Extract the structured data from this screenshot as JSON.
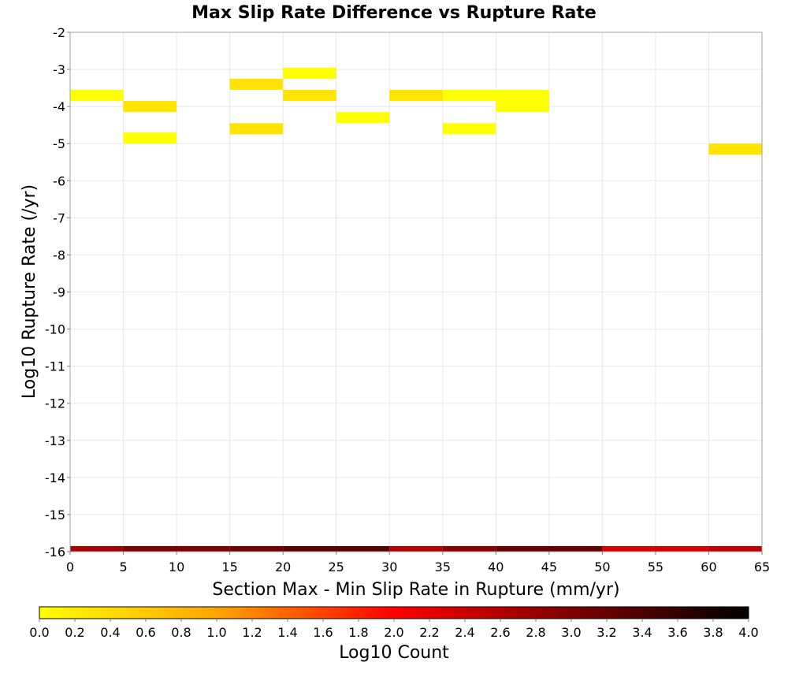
{
  "chart_data": {
    "type": "heatmap",
    "title": "Max Slip Rate Difference vs Rupture Rate",
    "xlabel": "Section Max - Min Slip Rate in Rupture (mm/yr)",
    "ylabel": "Log10 Rupture Rate (/yr)",
    "xlim": [
      0,
      65
    ],
    "ylim": [
      -16,
      -2
    ],
    "xticks": [
      "0",
      "5",
      "10",
      "15",
      "20",
      "25",
      "30",
      "35",
      "40",
      "45",
      "50",
      "55",
      "60",
      "65"
    ],
    "yticks": [
      "-2",
      "-3",
      "-4",
      "-5",
      "-6",
      "-7",
      "-8",
      "-9",
      "-10",
      "-11",
      "-12",
      "-13",
      "-14",
      "-15",
      "-16"
    ],
    "grid": true,
    "colorbar": {
      "label": "Log10 Count",
      "range": [
        0,
        4
      ],
      "position": "bottom",
      "ticks": [
        "0.0",
        "0.2",
        "0.4",
        "0.6",
        "0.8",
        "1.0",
        "1.2",
        "1.4",
        "1.6",
        "1.8",
        "2.0",
        "2.2",
        "2.4",
        "2.6",
        "2.8",
        "3.0",
        "3.2",
        "3.4",
        "3.6",
        "3.8",
        "4.0"
      ],
      "colors": [
        "#ffff00",
        "#ffa500",
        "#ff0000",
        "#800000",
        "#000000"
      ]
    },
    "cells": [
      {
        "x0": 0,
        "x1": 5,
        "y0": -3.85,
        "y1": -3.55,
        "value": 0.0
      },
      {
        "x0": 5,
        "x1": 10,
        "y0": -4.15,
        "y1": -3.85,
        "value": 0.3
      },
      {
        "x0": 5,
        "x1": 10,
        "y0": -5.0,
        "y1": -4.7,
        "value": 0.0
      },
      {
        "x0": 15,
        "x1": 20,
        "y0": -3.55,
        "y1": -3.25,
        "value": 0.3
      },
      {
        "x0": 15,
        "x1": 20,
        "y0": -4.75,
        "y1": -4.45,
        "value": 0.3
      },
      {
        "x0": 20,
        "x1": 25,
        "y0": -3.25,
        "y1": -2.95,
        "value": 0.0
      },
      {
        "x0": 20,
        "x1": 25,
        "y0": -3.85,
        "y1": -3.55,
        "value": 0.3
      },
      {
        "x0": 25,
        "x1": 30,
        "y0": -4.45,
        "y1": -4.15,
        "value": 0.0
      },
      {
        "x0": 30,
        "x1": 35,
        "y0": -3.85,
        "y1": -3.55,
        "value": 0.3
      },
      {
        "x0": 35,
        "x1": 40,
        "y0": -3.85,
        "y1": -3.55,
        "value": 0.0
      },
      {
        "x0": 35,
        "x1": 40,
        "y0": -4.75,
        "y1": -4.45,
        "value": 0.0
      },
      {
        "x0": 40,
        "x1": 45,
        "y0": -4.15,
        "y1": -3.55,
        "value": 0.0
      },
      {
        "x0": 60,
        "x1": 65,
        "y0": -5.3,
        "y1": -5.0,
        "value": 0.3
      },
      {
        "x0": 0,
        "x1": 5,
        "y0": -16.0,
        "y1": -15.85,
        "value": 2.7
      },
      {
        "x0": 5,
        "x1": 15,
        "y0": -16.0,
        "y1": -15.85,
        "value": 3.0
      },
      {
        "x0": 15,
        "x1": 20,
        "y0": -16.0,
        "y1": -15.85,
        "value": 3.1
      },
      {
        "x0": 20,
        "x1": 30,
        "y0": -16.0,
        "y1": -15.85,
        "value": 3.3
      },
      {
        "x0": 30,
        "x1": 35,
        "y0": -16.0,
        "y1": -15.85,
        "value": 2.6
      },
      {
        "x0": 35,
        "x1": 40,
        "y0": -16.0,
        "y1": -15.85,
        "value": 2.9
      },
      {
        "x0": 40,
        "x1": 50,
        "y0": -16.0,
        "y1": -15.85,
        "value": 3.2
      },
      {
        "x0": 50,
        "x1": 60,
        "y0": -16.0,
        "y1": -15.85,
        "value": 2.3
      },
      {
        "x0": 60,
        "x1": 65,
        "y0": -16.0,
        "y1": -15.85,
        "value": 2.5
      }
    ]
  }
}
